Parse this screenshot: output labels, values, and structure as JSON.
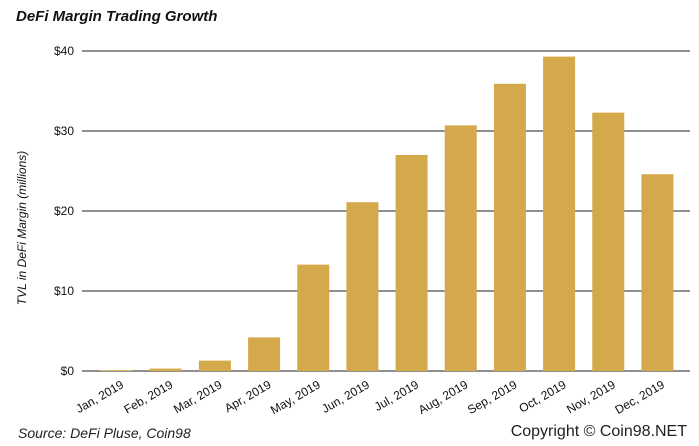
{
  "chart_data": {
    "type": "bar",
    "title": "DeFi Margin Trading Growth",
    "ylabel": "TVL in DeFi Margin (millions)",
    "xlabel": "",
    "categories": [
      "Jan, 2019",
      "Feb, 2019",
      "Mar, 2019",
      "Apr, 2019",
      "May, 2019",
      "Jun, 2019",
      "Jul, 2019",
      "Aug, 2019",
      "Sep, 2019",
      "Oct, 2019",
      "Nov, 2019",
      "Dec, 2019"
    ],
    "values": [
      0.1,
      0.3,
      1.3,
      4.2,
      13.3,
      21.1,
      27.0,
      30.7,
      35.9,
      39.3,
      32.3,
      24.6
    ],
    "ylim": [
      0,
      40
    ],
    "yticks": [
      0,
      10,
      20,
      30,
      40
    ],
    "ytick_labels": [
      "$0",
      "$10",
      "$20",
      "$30",
      "$40"
    ],
    "grid": true,
    "bar_color": "#D4A94C"
  },
  "footer": {
    "source": "Source: DeFi Pluse, Coin98",
    "copyright": "Copyright © Coin98.NET"
  }
}
